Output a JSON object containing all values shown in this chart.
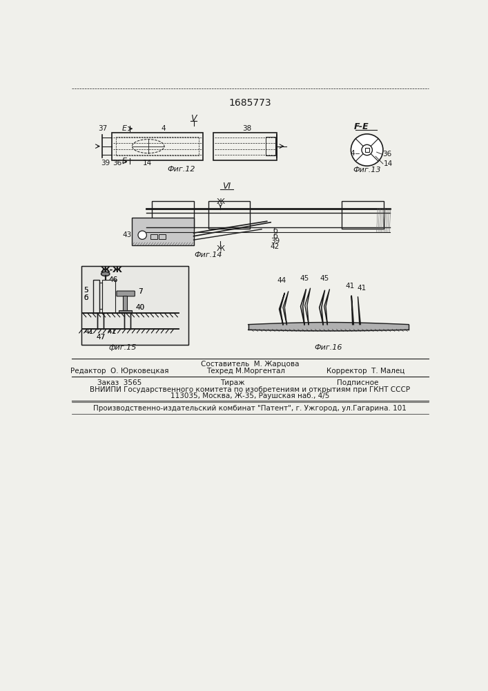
{
  "title": "1685773",
  "bg_color": "#f0f0eb",
  "line_color": "#1a1a1a",
  "fig12_label": "Фиг.12",
  "fig13_label": "Фиг.13",
  "fig14_label": "Фиг.14",
  "fig15_label": "фиг.15",
  "fig16_label": "Фиг.16",
  "footer_line1_center": "Составитель  М. Жарцова",
  "footer_line1_left": "Редактор  О. Юрковецкая",
  "footer_line1_right": "Корректор  Т. Малец",
  "footer_line2_left": "Техред М.Моргентал",
  "footer_order": "Заказ  3565",
  "footer_tirazh": "Тираж",
  "footer_podpisnoe": "Подписное",
  "footer_vniiipi": "ВНИИПИ Государственного комитета по изобретениям и открытиям при ГКНТ СССР",
  "footer_address": "113035, Москва, Ж-35, Раушская наб., 4/5",
  "footer_factory": "Производственно-издательский комбинат \"Патент\", г. Ужгород, ул.Гагарина. 101"
}
